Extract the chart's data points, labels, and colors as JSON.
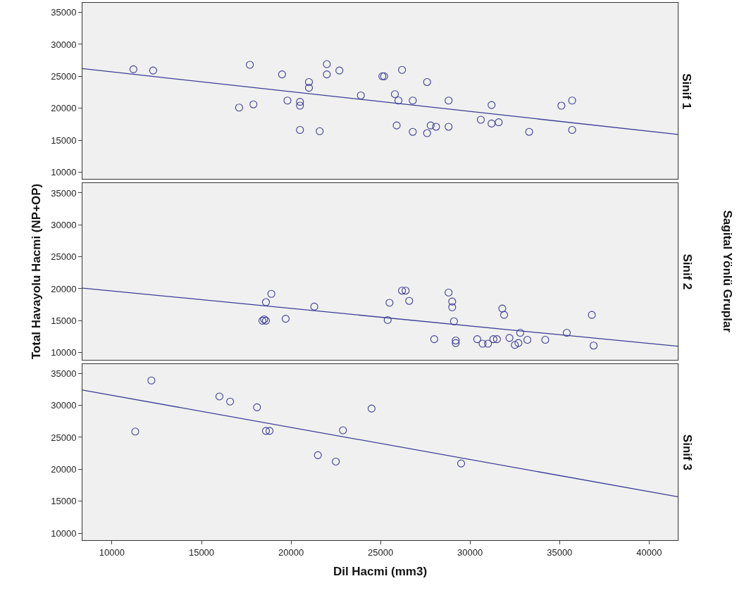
{
  "chart_data": [
    {
      "type": "scatter",
      "title": "Sinif 1",
      "marker": "circle",
      "xlim": [
        8350,
        41600
      ],
      "ylim": [
        8900,
        36500
      ],
      "xticks": [
        10000,
        15000,
        20000,
        25000,
        30000,
        35000,
        40000
      ],
      "yticks": [
        10000,
        15000,
        20000,
        25000,
        30000,
        35000
      ],
      "tick_labels": "y",
      "grid": false,
      "series": [
        {
          "color": "#3d3d96",
          "x": [
            11200,
            12300,
            17700,
            17100,
            17900,
            19500,
            19800,
            20500,
            20500,
            21000,
            21000,
            20500,
            21600,
            22000,
            22000,
            22700,
            23900,
            25100,
            25200,
            25800,
            26000,
            26200,
            25900,
            26800,
            26800,
            27600,
            27600,
            27800,
            28100,
            28800,
            28800,
            30600,
            31200,
            31200,
            31600,
            33300,
            35100,
            35700,
            35700
          ],
          "values": [
            26100,
            25900,
            26800,
            20100,
            20600,
            25300,
            21200,
            21000,
            20400,
            24100,
            23200,
            16600,
            16400,
            26900,
            25300,
            25900,
            22000,
            25000,
            25000,
            22200,
            21200,
            26000,
            17300,
            21200,
            16300,
            24100,
            16100,
            17300,
            17100,
            21200,
            17100,
            18200,
            20500,
            17600,
            17800,
            16300,
            20400,
            21200,
            16600
          ]
        },
        {
          "type": "line",
          "marker": "none",
          "color": "#3d3d96",
          "x": [
            8350,
            41600
          ],
          "values": [
            26200,
            15900
          ]
        }
      ]
    },
    {
      "type": "scatter",
      "title": "Sinif 2",
      "ylabel": "Total Havayolu Hacmi (NP+OP)",
      "annotations": [
        "Sagital Yönlü Gruplar"
      ],
      "marker": "circle",
      "xlim": [
        8350,
        41600
      ],
      "ylim": [
        8900,
        36500
      ],
      "xticks": [
        10000,
        15000,
        20000,
        25000,
        30000,
        35000,
        40000
      ],
      "yticks": [
        10000,
        15000,
        20000,
        25000,
        30000,
        35000
      ],
      "tick_labels": "y",
      "grid": false,
      "series": [
        {
          "color": "#3d3d96",
          "x": [
            18400,
            18500,
            18600,
            18600,
            18900,
            19700,
            21300,
            25400,
            25500,
            26200,
            26400,
            26600,
            28800,
            29000,
            29000,
            29100,
            28000,
            29200,
            29200,
            30400,
            30700,
            31000,
            31300,
            31500,
            31800,
            31900,
            32200,
            32500,
            32700,
            32800,
            33200,
            34200,
            35400,
            36800,
            36900
          ],
          "values": [
            15000,
            15200,
            15000,
            17900,
            19200,
            15300,
            17200,
            15100,
            17800,
            19700,
            19700,
            18100,
            19400,
            18000,
            17100,
            14900,
            12100,
            11900,
            11500,
            12100,
            11400,
            11400,
            12100,
            12100,
            16900,
            15900,
            12300,
            11200,
            11500,
            13100,
            12000,
            12000,
            13100,
            15900,
            11100
          ]
        },
        {
          "type": "line",
          "marker": "none",
          "color": "#3d3d96",
          "x": [
            8350,
            41600
          ],
          "values": [
            20100,
            11000
          ]
        }
      ]
    },
    {
      "type": "scatter",
      "title": "Sinif 3",
      "xlabel": "Dil Hacmi (mm3)",
      "marker": "circle",
      "xlim": [
        8350,
        41600
      ],
      "ylim": [
        8900,
        36500
      ],
      "xticks": [
        10000,
        15000,
        20000,
        25000,
        30000,
        35000,
        40000
      ],
      "yticks": [
        10000,
        15000,
        20000,
        25000,
        30000,
        35000
      ],
      "grid": false,
      "series": [
        {
          "color": "#3d3d96",
          "x": [
            11300,
            12200,
            16000,
            16600,
            18100,
            18600,
            18800,
            21500,
            22500,
            22900,
            24500,
            29500
          ],
          "values": [
            25900,
            33900,
            31400,
            30600,
            29700,
            26000,
            26000,
            22200,
            21200,
            26100,
            29500,
            20900
          ]
        },
        {
          "type": "line",
          "marker": "none",
          "color": "#3d3d96",
          "x": [
            8350,
            41600
          ],
          "values": [
            32400,
            15700
          ]
        }
      ]
    }
  ]
}
